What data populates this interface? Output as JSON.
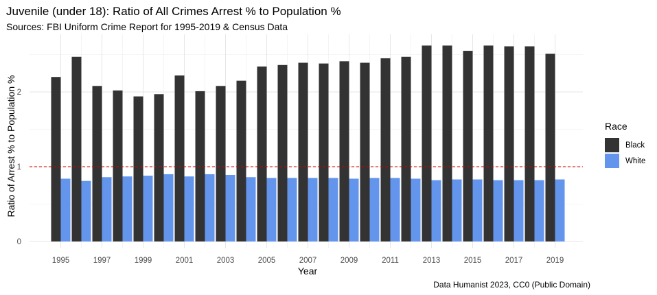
{
  "chart_data": {
    "type": "bar",
    "title": "Juvenile (under 18): Ratio of All Crimes Arrest % to Population %",
    "subtitle": "Sources: FBI Uniform Crime Report for 1995-2019 & Census Data",
    "xlabel": "Year",
    "ylabel": "Ratio of Arrest % to Population %",
    "caption": "Data Humanist 2023, CC0 (Public Domain)",
    "legend_title": "Race",
    "legend_position": "right",
    "grid": true,
    "ylim": [
      0,
      2.7
    ],
    "y_ticks": [
      "0",
      "1",
      "2"
    ],
    "x_ticks": [
      "1995",
      "1997",
      "1999",
      "2001",
      "2003",
      "2005",
      "2007",
      "2009",
      "2011",
      "2013",
      "2015",
      "2017",
      "2019"
    ],
    "reference_line": {
      "y": 1,
      "color": "#cc0000",
      "style": "dashed"
    },
    "categories": [
      "1995",
      "1996",
      "1997",
      "1998",
      "1999",
      "2000",
      "2001",
      "2002",
      "2003",
      "2004",
      "2005",
      "2006",
      "2007",
      "2008",
      "2009",
      "2010",
      "2011",
      "2012",
      "2013",
      "2014",
      "2015",
      "2016",
      "2017",
      "2018",
      "2019"
    ],
    "series": [
      {
        "name": "Black",
        "color": "#333333",
        "values": [
          2.2,
          2.47,
          2.08,
          2.02,
          1.94,
          1.97,
          2.22,
          2.01,
          2.08,
          2.15,
          2.34,
          2.36,
          2.39,
          2.38,
          2.41,
          2.39,
          2.45,
          2.47,
          2.62,
          2.62,
          2.55,
          2.62,
          2.61,
          2.61,
          2.51
        ]
      },
      {
        "name": "White",
        "color": "#6495ed",
        "values": [
          0.84,
          0.81,
          0.86,
          0.87,
          0.88,
          0.9,
          0.87,
          0.9,
          0.89,
          0.86,
          0.85,
          0.85,
          0.85,
          0.85,
          0.84,
          0.85,
          0.85,
          0.84,
          0.82,
          0.83,
          0.83,
          0.82,
          0.82,
          0.82,
          0.83
        ]
      }
    ]
  }
}
